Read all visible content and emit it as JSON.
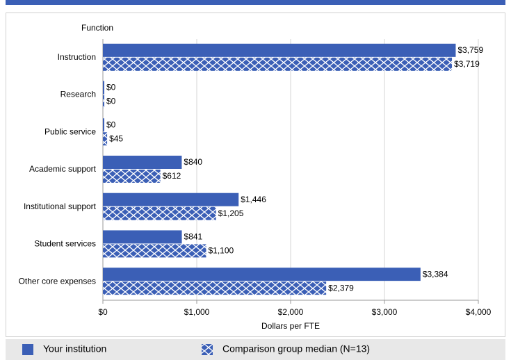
{
  "chart_data": {
    "type": "bar",
    "orientation": "horizontal",
    "y_axis_title": "Function",
    "x_axis_title": "Dollars per FTE",
    "categories": [
      "Instruction",
      "Research",
      "Public service",
      "Academic support",
      "Institutional support",
      "Student services",
      "Other core expenses"
    ],
    "series": [
      {
        "name": "Your institution",
        "color": "#3b5fb6",
        "pattern": "solid",
        "values": [
          3759,
          0,
          0,
          840,
          1446,
          841,
          3384
        ],
        "value_labels": [
          "$3,759",
          "$0",
          "$0",
          "$840",
          "$1,446",
          "$841",
          "$3,384"
        ]
      },
      {
        "name": "Comparison group median (N=13)",
        "color": "#3b5fb6",
        "pattern": "crosshatch",
        "values": [
          3719,
          0,
          45,
          612,
          1205,
          1100,
          2379
        ],
        "value_labels": [
          "$3,719",
          "$0",
          "$45",
          "$612",
          "$1,205",
          "$1,100",
          "$2,379"
        ]
      }
    ],
    "xlim": [
      0,
      4000
    ],
    "xticks": [
      {
        "value": 0,
        "label": "$0"
      },
      {
        "value": 1000,
        "label": "$1,000"
      },
      {
        "value": 2000,
        "label": "$2,000"
      },
      {
        "value": 3000,
        "label": "$3,000"
      },
      {
        "value": 4000,
        "label": "$4,000"
      }
    ],
    "grid": true,
    "legend": "bottom"
  }
}
